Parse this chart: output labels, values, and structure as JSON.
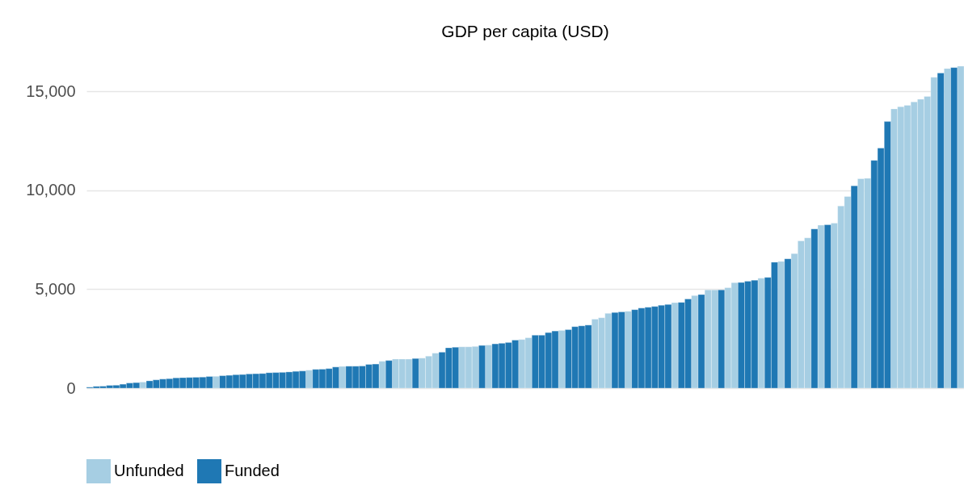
{
  "chart_data": {
    "type": "bar",
    "title": "GDP per capita (USD)",
    "categories": [
      null,
      null,
      null,
      null,
      null,
      null,
      null,
      null,
      null,
      null,
      null,
      null,
      null,
      null,
      null,
      null,
      null,
      null,
      null,
      null,
      null,
      null,
      null,
      null,
      null,
      null,
      null,
      null,
      null,
      null,
      null,
      null,
      null,
      null,
      null,
      null,
      null,
      null,
      null,
      null,
      null,
      null,
      null,
      null,
      null,
      null,
      null,
      null,
      null,
      null,
      null,
      null,
      null,
      null,
      null,
      null,
      null,
      null,
      null,
      null,
      null,
      null,
      null,
      null,
      null,
      null,
      null,
      null,
      null,
      null,
      null,
      null,
      null,
      null,
      null,
      null,
      null,
      null,
      null,
      null,
      null,
      null,
      null,
      null,
      null,
      null,
      null,
      null,
      null,
      null,
      null,
      null,
      null,
      null,
      null,
      null,
      null,
      null,
      null,
      null,
      null,
      null,
      null,
      null,
      null,
      null,
      null,
      null,
      null,
      null,
      null,
      null,
      null,
      null,
      null,
      null,
      null,
      null,
      null,
      null,
      null,
      null,
      null,
      null,
      null,
      null,
      null,
      null,
      null,
      null,
      null,
      null
    ],
    "series": [
      {
        "name": "Unfunded",
        "color": "#a6cee3",
        "values": [
          null,
          null,
          null,
          null,
          null,
          null,
          null,
          null,
          310,
          null,
          null,
          null,
          null,
          null,
          null,
          null,
          null,
          null,
          null,
          600,
          null,
          null,
          null,
          null,
          null,
          null,
          null,
          null,
          null,
          null,
          null,
          null,
          null,
          910,
          null,
          null,
          null,
          null,
          1100,
          null,
          null,
          null,
          null,
          null,
          1360,
          null,
          1470,
          1470,
          1470,
          null,
          1520,
          1620,
          1770,
          null,
          null,
          null,
          2090,
          2090,
          2110,
          null,
          2180,
          null,
          null,
          null,
          null,
          2460,
          2550,
          null,
          null,
          null,
          null,
          2920,
          null,
          null,
          null,
          null,
          3490,
          3560,
          3780,
          null,
          null,
          3890,
          null,
          null,
          null,
          null,
          null,
          null,
          4320,
          null,
          null,
          4680,
          null,
          4970,
          4970,
          null,
          5080,
          5330,
          null,
          null,
          null,
          5560,
          null,
          null,
          6410,
          null,
          6800,
          7450,
          7600,
          null,
          8240,
          null,
          8340,
          9210,
          9690,
          null,
          10590,
          10610,
          null,
          null,
          null,
          14120,
          14230,
          14300,
          14470,
          14610,
          14750,
          15720,
          null,
          16160,
          null,
          16280
        ]
      },
      {
        "name": "Funded",
        "color": "#1f78b4",
        "values": [
          50,
          90,
          100,
          140,
          150,
          200,
          260,
          280,
          null,
          370,
          420,
          460,
          480,
          520,
          530,
          540,
          550,
          560,
          590,
          null,
          630,
          650,
          680,
          690,
          720,
          730,
          740,
          780,
          790,
          800,
          820,
          850,
          870,
          null,
          950,
          960,
          990,
          1070,
          null,
          1110,
          1110,
          1120,
          1200,
          1220,
          null,
          1400,
          null,
          null,
          null,
          1500,
          null,
          null,
          null,
          1820,
          2040,
          2070,
          null,
          null,
          null,
          2160,
          null,
          2240,
          2270,
          2310,
          2430,
          null,
          null,
          2680,
          2680,
          2810,
          2890,
          null,
          2960,
          3110,
          3150,
          3190,
          null,
          null,
          null,
          3830,
          3860,
          null,
          3970,
          4050,
          4090,
          4130,
          4190,
          4230,
          null,
          4340,
          4510,
          null,
          4730,
          null,
          null,
          4970,
          null,
          null,
          5340,
          5410,
          5460,
          null,
          5600,
          6370,
          null,
          6540,
          null,
          null,
          null,
          8050,
          null,
          8260,
          null,
          null,
          null,
          10230,
          null,
          null,
          11520,
          12140,
          13480,
          null,
          null,
          null,
          null,
          null,
          null,
          null,
          15930,
          null,
          16210,
          null
        ]
      }
    ],
    "ylim": [
      0,
      16280
    ],
    "yticks": [
      0,
      {
        "value": 5000,
        "label": "5,000"
      },
      {
        "value": 10000,
        "label": "10,000"
      },
      {
        "value": 15000,
        "label": "15,000"
      }
    ],
    "grid": "y",
    "legend": "bottom",
    "tick_labels": "y"
  }
}
